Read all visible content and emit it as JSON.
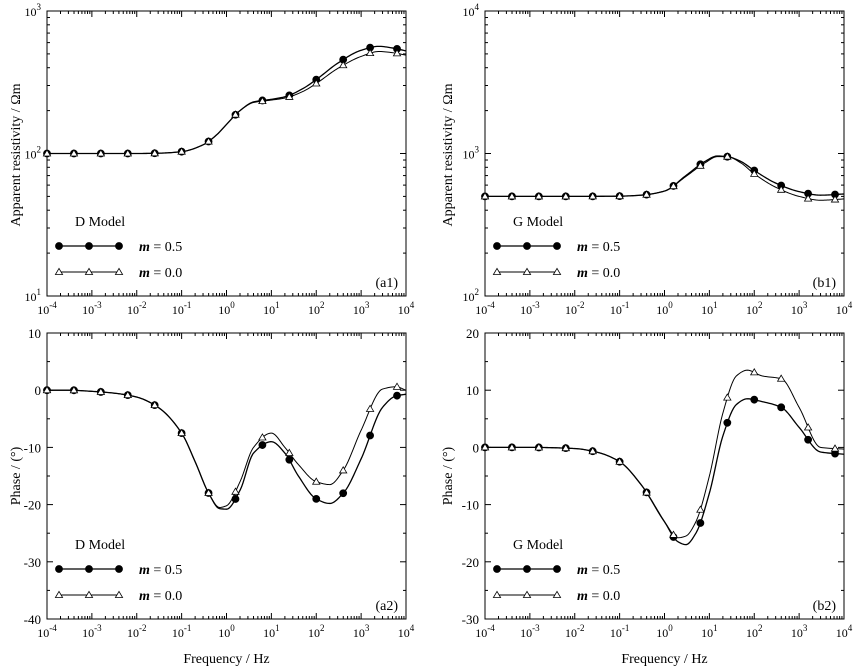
{
  "figure": {
    "x_label": "Frequency / Hz",
    "y_label_resistivity": "Apparent  resistivity / Ωm",
    "y_label_phase": "Phase / (°)"
  },
  "chart_data": [
    {
      "id": "a1",
      "type": "line",
      "panel_label": "(a1)",
      "model_label": "D Model",
      "xscale": "log",
      "yscale": "log",
      "xlim": [
        0.0001,
        10000
      ],
      "ylim": [
        10,
        1000
      ],
      "ytick_exponents": [
        1,
        2,
        3
      ],
      "xlabel": "",
      "ylabel": "Apparent  resistivity / Ωm",
      "legend_position": "bottom-left",
      "series": [
        {
          "name": "m = 0.5",
          "name_var": "m",
          "name_val": " = 0.5",
          "marker": "filled-circle",
          "x": [
            0.0001,
            0.0003,
            0.001,
            0.003,
            0.01,
            0.03,
            0.1,
            0.3,
            0.6,
            1,
            2,
            4,
            10,
            20,
            50,
            100,
            300,
            1000,
            2500,
            5000,
            10000
          ],
          "y": [
            100,
            100,
            100,
            100,
            100,
            100.5,
            103,
            115,
            135,
            160,
            200,
            230,
            240,
            250,
            285,
            330,
            430,
            530,
            565,
            550,
            525
          ]
        },
        {
          "name": "m = 0.0",
          "name_var": "m",
          "name_val": " = 0.0",
          "marker": "open-triangle",
          "x": [
            0.0001,
            0.0003,
            0.001,
            0.003,
            0.01,
            0.03,
            0.1,
            0.3,
            0.6,
            1,
            2,
            4,
            10,
            20,
            50,
            100,
            300,
            1000,
            2500,
            5000,
            10000
          ],
          "y": [
            100,
            100,
            100,
            100,
            100,
            100.5,
            103,
            115,
            135,
            160,
            200,
            228,
            237,
            245,
            272,
            310,
            395,
            480,
            520,
            510,
            490
          ]
        }
      ]
    },
    {
      "id": "b1",
      "type": "line",
      "panel_label": "(b1)",
      "model_label": "G Model",
      "xscale": "log",
      "yscale": "log",
      "xlim": [
        0.0001,
        10000
      ],
      "ylim": [
        100,
        10000
      ],
      "ytick_exponents": [
        2,
        3,
        4
      ],
      "xlabel": "",
      "ylabel": "Apparent  resistivity / Ωm",
      "legend_position": "bottom-left",
      "series": [
        {
          "name": "m = 0.5",
          "name_var": "m",
          "name_val": " = 0.5",
          "marker": "filled-circle",
          "x": [
            0.0001,
            0.001,
            0.01,
            0.1,
            0.3,
            1,
            3,
            8,
            15,
            25,
            50,
            100,
            300,
            1000,
            3000,
            10000
          ],
          "y": [
            500,
            500,
            500,
            502,
            510,
            545,
            700,
            880,
            960,
            950,
            880,
            760,
            620,
            540,
            510,
            520
          ]
        },
        {
          "name": "m = 0.0",
          "name_var": "m",
          "name_val": " = 0.0",
          "marker": "open-triangle",
          "x": [
            0.0001,
            0.001,
            0.01,
            0.1,
            0.3,
            1,
            3,
            8,
            15,
            25,
            50,
            100,
            300,
            1000,
            3000,
            10000
          ],
          "y": [
            500,
            500,
            500,
            502,
            510,
            545,
            690,
            860,
            950,
            950,
            860,
            720,
            580,
            500,
            470,
            480
          ]
        }
      ]
    },
    {
      "id": "a2",
      "type": "line",
      "panel_label": "(a2)",
      "model_label": "D Model",
      "xscale": "log",
      "yscale": "linear",
      "xlim": [
        0.0001,
        10000
      ],
      "ylim": [
        -40,
        10
      ],
      "yticks": [
        -40,
        -30,
        -20,
        -10,
        0,
        10
      ],
      "xlabel": "Frequency / Hz",
      "ylabel": "Phase / (°)",
      "legend_position": "bottom-left",
      "series": [
        {
          "name": "m = 0.5",
          "name_var": "m",
          "name_val": " = 0.5",
          "marker": "filled-circle",
          "x": [
            0.0001,
            0.0003,
            0.001,
            0.003,
            0.01,
            0.03,
            0.1,
            0.2,
            0.4,
            0.7,
            1,
            2,
            4,
            10,
            20,
            40,
            100,
            200,
            400,
            1000,
            3000,
            6000,
            10000
          ],
          "y": [
            0,
            0,
            -0.2,
            -0.5,
            -1.2,
            -3,
            -7.5,
            -12.5,
            -18,
            -20.7,
            -20.8,
            -17.5,
            -11,
            -9,
            -11,
            -15,
            -19,
            -19.8,
            -18,
            -12,
            -3,
            -1,
            -0.7
          ]
        },
        {
          "name": "m = 0.0",
          "name_var": "m",
          "name_val": " = 0.0",
          "marker": "open-triangle",
          "x": [
            0.0001,
            0.0003,
            0.001,
            0.003,
            0.01,
            0.03,
            0.1,
            0.2,
            0.4,
            0.7,
            1,
            2,
            4,
            10,
            20,
            40,
            100,
            200,
            400,
            1000,
            3000,
            6000,
            10000
          ],
          "y": [
            0,
            0,
            -0.2,
            -0.5,
            -1.2,
            -3,
            -7.5,
            -12.5,
            -18,
            -20.5,
            -20.2,
            -16,
            -10,
            -7.5,
            -10,
            -13,
            -16,
            -16.5,
            -14,
            -7,
            0.2,
            0.6,
            0
          ]
        }
      ]
    },
    {
      "id": "b2",
      "type": "line",
      "panel_label": "(b2)",
      "model_label": "G Model",
      "xscale": "log",
      "yscale": "linear",
      "xlim": [
        0.0001,
        10000
      ],
      "ylim": [
        -30,
        20
      ],
      "yticks": [
        -30,
        -20,
        -10,
        0,
        10,
        20
      ],
      "xlabel": "Frequency / Hz",
      "ylabel": "Phase / (°)",
      "legend_position": "bottom-left",
      "series": [
        {
          "name": "m = 0.5",
          "name_var": "m",
          "name_val": " = 0.5",
          "marker": "filled-circle",
          "x": [
            0.0001,
            0.001,
            0.01,
            0.03,
            0.1,
            0.3,
            1,
            2,
            3,
            5,
            10,
            20,
            40,
            70,
            150,
            400,
            1000,
            3000,
            10000
          ],
          "y": [
            0,
            0,
            -0.2,
            -0.8,
            -2.5,
            -6.5,
            -13,
            -16.5,
            -17,
            -15,
            -8,
            2,
            7.5,
            8.5,
            8,
            7,
            3.5,
            -0.8,
            -1.2
          ]
        },
        {
          "name": "m = 0.0",
          "name_var": "m",
          "name_val": " = 0.0",
          "marker": "open-triangle",
          "x": [
            0.0001,
            0.001,
            0.01,
            0.03,
            0.1,
            0.3,
            1,
            2,
            3,
            5,
            10,
            20,
            40,
            70,
            150,
            400,
            1000,
            3000,
            10000
          ],
          "y": [
            0,
            0,
            -0.2,
            -0.8,
            -2.5,
            -6.5,
            -13,
            -15.8,
            -15.5,
            -13,
            -5,
            6,
            12.5,
            13.5,
            12.5,
            12,
            7,
            0,
            -0.3
          ]
        }
      ]
    }
  ]
}
